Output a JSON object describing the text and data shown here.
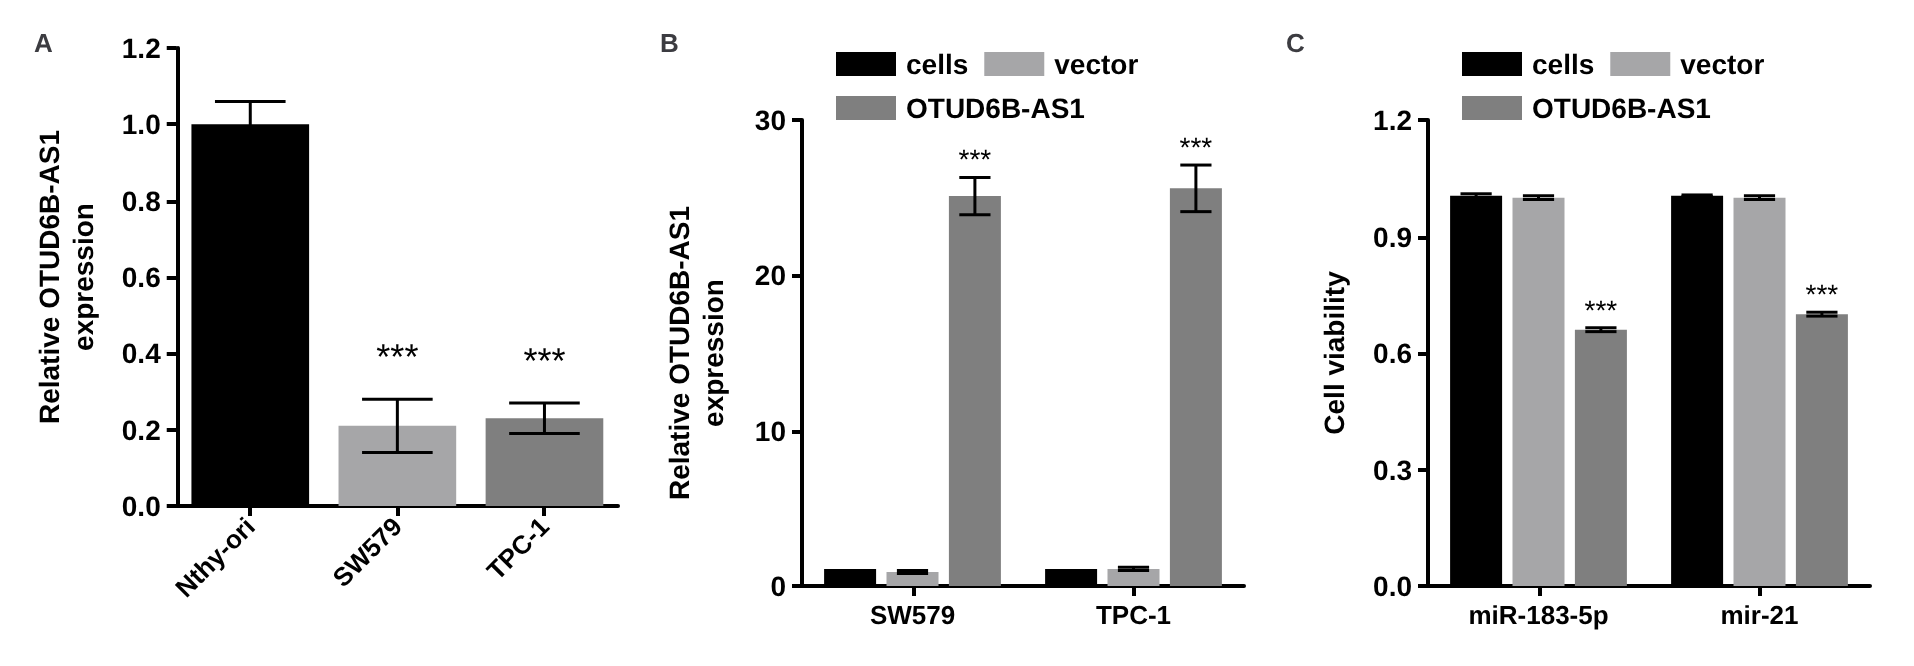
{
  "chart_data": [
    {
      "type": "bar",
      "title": "A",
      "ylabel": "Relative OTUD6B-AS1 expression",
      "categories": [
        "Nthy-ori",
        "SW579",
        "TPC-1"
      ],
      "values": [
        1.0,
        0.21,
        0.23
      ],
      "colors": [
        "#000000",
        "#a6a6a8",
        "#7f7f7f"
      ],
      "errors": [
        0.06,
        0.07,
        0.04
      ],
      "value_labels": [
        null,
        "***",
        "***"
      ],
      "ylim": [
        0,
        1.2
      ],
      "yticks": [
        {
          "value": 0,
          "label": "0.0"
        },
        {
          "value": 0.2,
          "label": "0.2"
        },
        {
          "value": 0.4,
          "label": "0.4"
        },
        {
          "value": 0.6,
          "label": "0.6"
        },
        {
          "value": 0.8,
          "label": "0.8"
        },
        {
          "value": 1,
          "label": "1.0"
        },
        {
          "value": 1.2,
          "label": "1.2"
        }
      ],
      "grid": false,
      "legend": false
    },
    {
      "type": "bar",
      "title": "B",
      "ylabel": "Relative OTUD6B-AS1 expression",
      "categories": [
        "SW579",
        "TPC-1"
      ],
      "series": [
        {
          "name": "cells",
          "color": "#000000",
          "values": [
            1.1,
            1.1
          ]
        },
        {
          "name": "vector",
          "color": "#a6a6a8",
          "values": [
            0.9,
            1.1
          ],
          "errors": [
            0.1,
            0.1
          ]
        },
        {
          "name": "OTUD6B-AS1",
          "color": "#7f7f7f",
          "values": [
            25.1,
            25.6
          ],
          "errors": [
            1.2,
            1.5
          ],
          "value_labels": [
            "***",
            "***"
          ]
        }
      ],
      "ylim": [
        0,
        30
      ],
      "yticks": [
        0,
        10,
        20,
        30
      ],
      "grid": false,
      "legend": "top"
    },
    {
      "type": "bar",
      "title": "C",
      "ylabel": "Cell viability",
      "categories": [
        "miR-183-5p",
        "mir-21"
      ],
      "series": [
        {
          "name": "cells",
          "color": "#000000",
          "values": [
            1.005,
            1.005
          ],
          "errors": [
            0.005,
            0.002
          ]
        },
        {
          "name": "vector",
          "color": "#a6a6a8",
          "values": [
            1.0,
            1.0
          ],
          "errors": [
            0.005,
            0.005
          ]
        },
        {
          "name": "OTUD6B-AS1",
          "color": "#7f7f7f",
          "values": [
            0.66,
            0.7
          ],
          "errors": [
            0.005,
            0.005
          ],
          "value_labels": [
            "***",
            "***"
          ]
        }
      ],
      "ylim": [
        0,
        1.2
      ],
      "yticks": [
        {
          "value": 0,
          "label": "0.0"
        },
        {
          "value": 0.3,
          "label": "0.3"
        },
        {
          "value": 0.6,
          "label": "0.6"
        },
        {
          "value": 0.9,
          "label": "0.9"
        },
        {
          "value": 1.2,
          "label": "1.2"
        }
      ],
      "grid": false,
      "legend": "top"
    }
  ]
}
